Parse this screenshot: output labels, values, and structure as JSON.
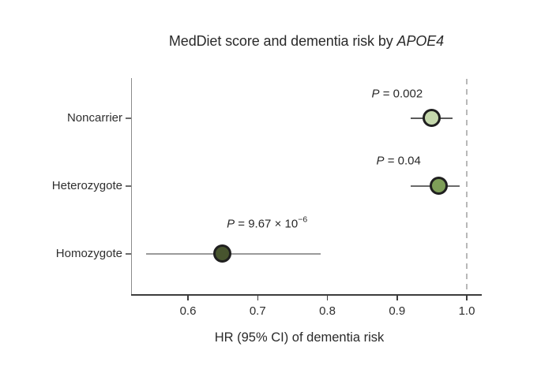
{
  "title": {
    "plain": "MedDiet score and dementia risk by ",
    "italic": "APOE4"
  },
  "chart_data": {
    "type": "scatter",
    "subtype": "forest-plot",
    "xlabel": "HR (95% CI) of dementia risk",
    "x_ticks": [
      "0.6",
      "0.7",
      "0.8",
      "0.9",
      "1.0"
    ],
    "x_tick_values": [
      0.6,
      0.7,
      0.8,
      0.9,
      1.0
    ],
    "xlim": [
      0.52,
      1.02
    ],
    "reference_line": 1.0,
    "grid": "off",
    "legend": "none",
    "p_symbol": "P",
    "p_equals": " = ",
    "rows": [
      {
        "label": "Noncarrier",
        "hr": 0.95,
        "ci": [
          0.92,
          0.98
        ],
        "p_base": "0.002",
        "p_exp": null,
        "marker_color": "#c5d8ac",
        "line_color": "#5a5a5a"
      },
      {
        "label": "Heterozygote",
        "hr": 0.96,
        "ci": [
          0.92,
          0.99
        ],
        "p_base": "0.04",
        "p_exp": null,
        "marker_color": "#7e9e58",
        "line_color": "#6a6a6a"
      },
      {
        "label": "Homozygote",
        "hr": 0.65,
        "ci": [
          0.54,
          0.79
        ],
        "p_base": "9.67 × 10",
        "p_exp": "−6",
        "marker_color": "#47542e",
        "line_color": "#9a9a9a"
      }
    ],
    "colors": {
      "background": "#ffffff",
      "text": "#2a2a2a",
      "axis": "#3c3c3c",
      "spine": "#8c8c8c",
      "reference_line": "#b8b8b8",
      "marker_border": "#1f1f1f"
    }
  }
}
